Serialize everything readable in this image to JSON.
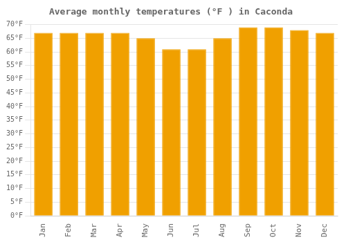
{
  "chart_data": {
    "type": "bar",
    "title": "Average monthly temperatures (°F ) in Caconda",
    "categories": [
      "Jan",
      "Feb",
      "Mar",
      "Apr",
      "May",
      "Jun",
      "Jul",
      "Aug",
      "Sep",
      "Oct",
      "Nov",
      "Dec"
    ],
    "values": [
      67,
      67,
      67,
      67,
      65,
      61,
      61,
      65,
      69,
      69,
      68,
      67
    ],
    "color": "#F0A000",
    "ylim": [
      0,
      70
    ],
    "yticks": [
      {
        "value": 0,
        "label": "0°F"
      },
      {
        "value": 5,
        "label": "5°F"
      },
      {
        "value": 10,
        "label": "10°F"
      },
      {
        "value": 15,
        "label": "15°F"
      },
      {
        "value": 20,
        "label": "20°F"
      },
      {
        "value": 25,
        "label": "25°F"
      },
      {
        "value": 30,
        "label": "30°F"
      },
      {
        "value": 35,
        "label": "35°F"
      },
      {
        "value": 40,
        "label": "40°F"
      },
      {
        "value": 45,
        "label": "45°F"
      },
      {
        "value": 50,
        "label": "50°F"
      },
      {
        "value": 55,
        "label": "55°F"
      },
      {
        "value": 60,
        "label": "60°F"
      },
      {
        "value": 65,
        "label": "65°F"
      },
      {
        "value": 70,
        "label": "70°F"
      }
    ],
    "grid": true
  }
}
